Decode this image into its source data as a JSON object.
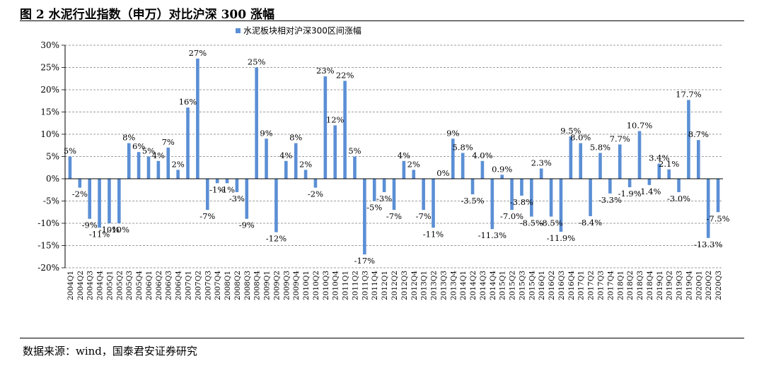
{
  "title": "图 2 水泥行业指数（申万）对比沪深 300 涨幅",
  "source": "数据来源：wind，国泰君安证券研究",
  "colors": {
    "bar": "#5B8FD5",
    "grid": "#7f7f7f",
    "axis": "#000000"
  },
  "chart_data": {
    "type": "bar",
    "title": "",
    "xlabel": "",
    "ylabel": "",
    "ylim": [
      -20,
      30
    ],
    "yticks": [
      "30%",
      "25%",
      "20%",
      "15%",
      "10%",
      "5%",
      "0%",
      "-5%",
      "-10%",
      "-15%",
      "-20%"
    ],
    "grid": true,
    "legend_position": "top-center",
    "categories": [
      "2004Q1",
      "2004Q2",
      "2004Q3",
      "2004Q4",
      "2005Q1",
      "2005Q2",
      "2005Q3",
      "2005Q4",
      "2006Q1",
      "2006Q2",
      "2006Q3",
      "2006Q4",
      "2007Q1",
      "2007Q2",
      "2007Q3",
      "2007Q4",
      "2008Q1",
      "2008Q2",
      "2008Q3",
      "2008Q4",
      "2009Q1",
      "2009Q2",
      "2009Q3",
      "2009Q4",
      "2010Q1",
      "2010Q2",
      "2010Q3",
      "2010Q4",
      "2011Q1",
      "2011Q2",
      "2011Q3",
      "2011Q4",
      "2012Q1",
      "2012Q2",
      "2012Q3",
      "2012Q4",
      "2013Q1",
      "2013Q2",
      "2013Q3",
      "2013Q4",
      "2014Q1",
      "2014Q2",
      "2014Q3",
      "2014Q4",
      "2015Q1",
      "2015Q2",
      "2015Q3",
      "2015Q4",
      "2016Q1",
      "2016Q2",
      "2016Q3",
      "2016Q4",
      "2017Q1",
      "2017Q2",
      "2017Q3",
      "2017Q4",
      "2018Q1",
      "2018Q2",
      "2018Q3",
      "2018Q4",
      "2019Q1",
      "2019Q2",
      "2019Q3",
      "2019Q4",
      "2020Q1",
      "2020Q2",
      "2020Q3"
    ],
    "series": [
      {
        "name": "水泥板块相对沪深300区间涨幅",
        "values": [
          5,
          -2,
          -9,
          -11,
          -10,
          -10,
          8,
          6,
          5,
          4,
          7,
          2,
          16,
          27,
          -7,
          -1,
          -1,
          -3,
          -9,
          25,
          9,
          -12,
          4,
          8,
          2,
          -2,
          23,
          12,
          22,
          5,
          -17,
          -5,
          -3,
          -7,
          4,
          2,
          -7,
          -11,
          0,
          9,
          5.8,
          -3.5,
          4.0,
          -11.3,
          0.9,
          -7.0,
          -3.8,
          -8.5,
          2.3,
          -8.5,
          -11.9,
          9.5,
          8.0,
          -8.4,
          5.8,
          -3.3,
          7.7,
          -1.9,
          10.7,
          -1.4,
          3.4,
          2.1,
          -3.0,
          17.7,
          8.7,
          -13.3,
          -7.5
        ],
        "labels": [
          "5%",
          "-2%",
          "-9%",
          "-11%",
          "-10%",
          "-10%",
          "8%",
          "6%",
          "5%",
          "4%",
          "7%",
          "2%",
          "16%",
          "27%",
          "-7%",
          "-1%",
          "-1%",
          "-3%",
          "-9%",
          "25%",
          "9%",
          "-12%",
          "4%",
          "8%",
          "2%",
          "-2%",
          "23%",
          "12%",
          "22%",
          "5%",
          "-17%",
          "-5%",
          "-3%",
          "-7%",
          "4%",
          "2%",
          "-7%",
          "-11%",
          "0%",
          "9%",
          "5.8%",
          "-3.5%",
          "4.0%",
          "-11.3%",
          "0.9%",
          "-7.0%",
          "-3.8%",
          "-8.5%",
          "2.3%",
          "-8.5%",
          "-11.9%",
          "9.5%",
          "8.0%",
          "-8.4%",
          "5.8%",
          "-3.3%",
          "7.7%",
          "-1.9%",
          "10.7%",
          "-1.4%",
          "3.4%",
          "2.1%",
          "-3.0%",
          "17.7%",
          "8.7%",
          "-13.3%",
          "-7.5%"
        ]
      }
    ]
  }
}
